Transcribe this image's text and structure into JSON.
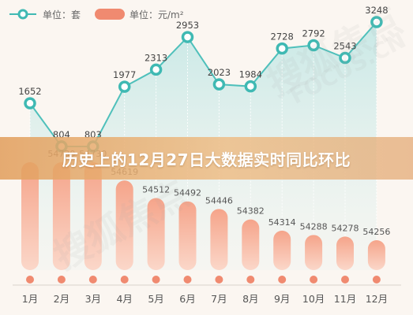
{
  "banner": {
    "title": "历史上的12月27日大数据实时同比环比"
  },
  "chart_data": {
    "type": "bar+line",
    "categories": [
      "1月",
      "2月",
      "3月",
      "4月",
      "5月",
      "6月",
      "7月",
      "8月",
      "9月",
      "10月",
      "11月",
      "12月"
    ],
    "legend": [
      {
        "name": "单位：套",
        "color": "#3fb9b3",
        "kind": "line"
      },
      {
        "name": "单位：元/m²",
        "color": "#f08a70",
        "kind": "bar"
      }
    ],
    "series": [
      {
        "name": "单位：套",
        "type": "line",
        "color": "#3fb9b3",
        "values": [
          1652,
          804,
          803,
          1977,
          2313,
          2953,
          2023,
          1984,
          2728,
          2792,
          2543,
          3248
        ]
      },
      {
        "name": "单位：元/m²",
        "type": "bar",
        "color": "#f08a70",
        "values": [
          54730,
          54730,
          54730,
          54619,
          54512,
          54492,
          54446,
          54382,
          54314,
          54288,
          54278,
          54256
        ],
        "labels": [
          "",
          "54730",
          "54730",
          "54619",
          "54512",
          "54492",
          "54446",
          "54382",
          "54314",
          "54288",
          "54278",
          "54256"
        ]
      }
    ],
    "grid": false,
    "legend_placement": "top-left"
  },
  "watermarks": [
    "搜狐焦点",
    "FOCUS.CN"
  ]
}
